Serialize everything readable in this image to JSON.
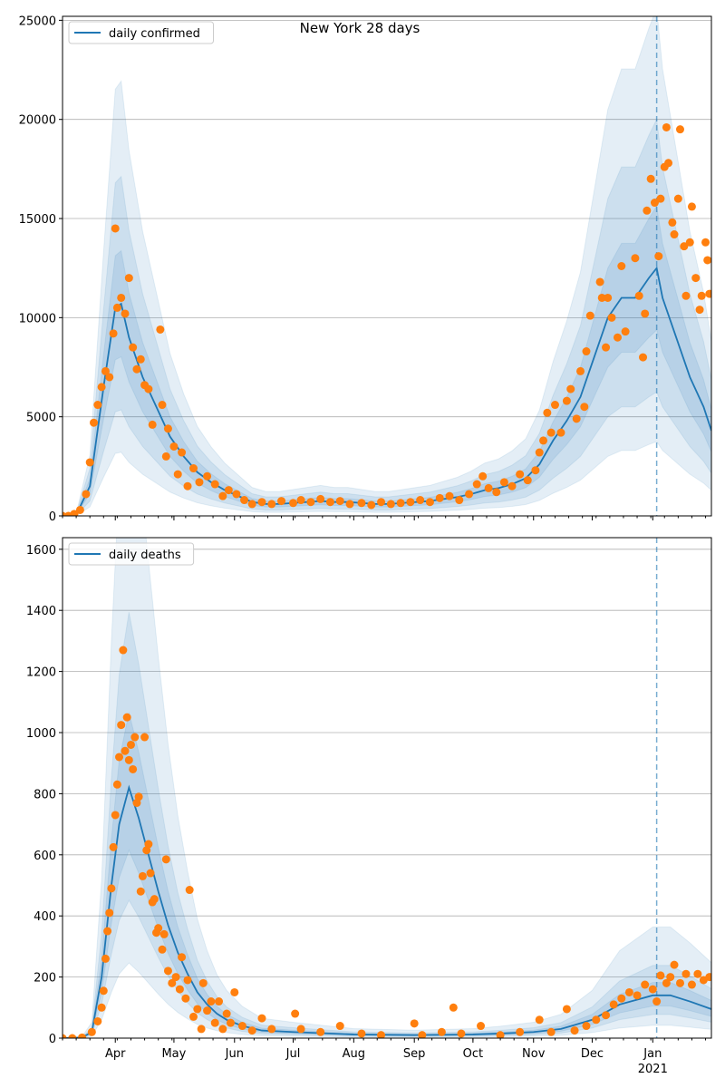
{
  "chart_data": [
    {
      "type": "line",
      "title": "New York 28 days",
      "legend": "daily confirmed",
      "legend_position": "top-left",
      "xlim": [
        "2020-03-05",
        "2021-01-31"
      ],
      "ylim": [
        0,
        25200
      ],
      "yticks": [
        0,
        5000,
        10000,
        15000,
        20000,
        25000
      ],
      "grid": "y",
      "forecast_marker": "2021-01-03",
      "colors": {
        "line": "#1f77b4",
        "points": "#ff7f0e",
        "band": "#1f77b4"
      },
      "band_factors": [
        {
          "lo": 0.3,
          "hi": 2.05
        },
        {
          "lo": 0.5,
          "hi": 1.6
        },
        {
          "lo": 0.75,
          "hi": 1.25
        }
      ],
      "model": [
        [
          "2020-03-05",
          0
        ],
        [
          "2020-03-12",
          50
        ],
        [
          "2020-03-19",
          1500
        ],
        [
          "2020-03-26",
          6500
        ],
        [
          "2020-04-01",
          10500
        ],
        [
          "2020-04-04",
          10700
        ],
        [
          "2020-04-08",
          9000
        ],
        [
          "2020-04-15",
          7000
        ],
        [
          "2020-04-22",
          5500
        ],
        [
          "2020-04-29",
          4000
        ],
        [
          "2020-05-06",
          3000
        ],
        [
          "2020-05-13",
          2200
        ],
        [
          "2020-05-20",
          1700
        ],
        [
          "2020-05-27",
          1300
        ],
        [
          "2020-06-03",
          1000
        ],
        [
          "2020-06-10",
          700
        ],
        [
          "2020-06-17",
          600
        ],
        [
          "2020-06-24",
          600
        ],
        [
          "2020-07-01",
          650
        ],
        [
          "2020-07-08",
          700
        ],
        [
          "2020-07-15",
          750
        ],
        [
          "2020-07-22",
          700
        ],
        [
          "2020-07-29",
          700
        ],
        [
          "2020-08-05",
          650
        ],
        [
          "2020-08-12",
          600
        ],
        [
          "2020-08-19",
          600
        ],
        [
          "2020-08-26",
          650
        ],
        [
          "2020-09-02",
          700
        ],
        [
          "2020-09-09",
          750
        ],
        [
          "2020-09-16",
          850
        ],
        [
          "2020-09-23",
          950
        ],
        [
          "2020-09-30",
          1100
        ],
        [
          "2020-10-07",
          1300
        ],
        [
          "2020-10-14",
          1400
        ],
        [
          "2020-10-21",
          1600
        ],
        [
          "2020-10-28",
          1900
        ],
        [
          "2020-11-04",
          2600
        ],
        [
          "2020-11-11",
          3800
        ],
        [
          "2020-11-18",
          4800
        ],
        [
          "2020-11-25",
          6000
        ],
        [
          "2020-12-02",
          8000
        ],
        [
          "2020-12-09",
          10000
        ],
        [
          "2020-12-16",
          11000
        ],
        [
          "2020-12-23",
          11000
        ],
        [
          "2020-12-30",
          12000
        ],
        [
          "2021-01-03",
          12500
        ],
        [
          "2021-01-06",
          11000
        ],
        [
          "2021-01-13",
          9000
        ],
        [
          "2021-01-20",
          7000
        ],
        [
          "2021-01-27",
          5500
        ],
        [
          "2021-01-31",
          4300
        ]
      ],
      "observed": [
        [
          "2020-03-05",
          0
        ],
        [
          "2020-03-08",
          0
        ],
        [
          "2020-03-11",
          100
        ],
        [
          "2020-03-14",
          300
        ],
        [
          "2020-03-17",
          1100
        ],
        [
          "2020-03-19",
          2700
        ],
        [
          "2020-03-21",
          4700
        ],
        [
          "2020-03-23",
          5600
        ],
        [
          "2020-03-25",
          6500
        ],
        [
          "2020-03-27",
          7300
        ],
        [
          "2020-03-29",
          7000
        ],
        [
          "2020-03-31",
          9200
        ],
        [
          "2020-04-01",
          14500
        ],
        [
          "2020-04-02",
          10500
        ],
        [
          "2020-04-04",
          11000
        ],
        [
          "2020-04-06",
          10200
        ],
        [
          "2020-04-08",
          12000
        ],
        [
          "2020-04-10",
          8500
        ],
        [
          "2020-04-12",
          7400
        ],
        [
          "2020-04-14",
          7900
        ],
        [
          "2020-04-16",
          6600
        ],
        [
          "2020-04-18",
          6400
        ],
        [
          "2020-04-20",
          4600
        ],
        [
          "2020-04-24",
          9400
        ],
        [
          "2020-04-25",
          5600
        ],
        [
          "2020-04-27",
          3000
        ],
        [
          "2020-04-28",
          4400
        ],
        [
          "2020-05-01",
          3500
        ],
        [
          "2020-05-03",
          2100
        ],
        [
          "2020-05-05",
          3200
        ],
        [
          "2020-05-08",
          1500
        ],
        [
          "2020-05-11",
          2400
        ],
        [
          "2020-05-14",
          1700
        ],
        [
          "2020-05-18",
          2000
        ],
        [
          "2020-05-22",
          1600
        ],
        [
          "2020-05-26",
          1000
        ],
        [
          "2020-05-29",
          1300
        ],
        [
          "2020-06-02",
          1100
        ],
        [
          "2020-06-06",
          800
        ],
        [
          "2020-06-10",
          600
        ],
        [
          "2020-06-15",
          700
        ],
        [
          "2020-06-20",
          600
        ],
        [
          "2020-06-25",
          750
        ],
        [
          "2020-07-01",
          650
        ],
        [
          "2020-07-05",
          800
        ],
        [
          "2020-07-10",
          700
        ],
        [
          "2020-07-15",
          850
        ],
        [
          "2020-07-20",
          700
        ],
        [
          "2020-07-25",
          750
        ],
        [
          "2020-07-30",
          600
        ],
        [
          "2020-08-05",
          650
        ],
        [
          "2020-08-10",
          550
        ],
        [
          "2020-08-15",
          700
        ],
        [
          "2020-08-20",
          600
        ],
        [
          "2020-08-25",
          650
        ],
        [
          "2020-08-30",
          700
        ],
        [
          "2020-09-04",
          800
        ],
        [
          "2020-09-09",
          700
        ],
        [
          "2020-09-14",
          900
        ],
        [
          "2020-09-19",
          1000
        ],
        [
          "2020-09-24",
          800
        ],
        [
          "2020-09-29",
          1100
        ],
        [
          "2020-10-03",
          1600
        ],
        [
          "2020-10-06",
          2000
        ],
        [
          "2020-10-09",
          1400
        ],
        [
          "2020-10-13",
          1200
        ],
        [
          "2020-10-17",
          1700
        ],
        [
          "2020-10-21",
          1500
        ],
        [
          "2020-10-25",
          2100
        ],
        [
          "2020-10-29",
          1800
        ],
        [
          "2020-11-02",
          2300
        ],
        [
          "2020-11-04",
          3200
        ],
        [
          "2020-11-06",
          3800
        ],
        [
          "2020-11-08",
          5200
        ],
        [
          "2020-11-10",
          4200
        ],
        [
          "2020-11-12",
          5600
        ],
        [
          "2020-11-15",
          4200
        ],
        [
          "2020-11-18",
          5800
        ],
        [
          "2020-11-20",
          6400
        ],
        [
          "2020-11-23",
          4900
        ],
        [
          "2020-11-25",
          7300
        ],
        [
          "2020-11-27",
          5500
        ],
        [
          "2020-11-28",
          8300
        ],
        [
          "2020-11-30",
          10100
        ],
        [
          "2020-12-05",
          11800
        ],
        [
          "2020-12-06",
          11000
        ],
        [
          "2020-12-08",
          8500
        ],
        [
          "2020-12-09",
          11000
        ],
        [
          "2020-12-11",
          10000
        ],
        [
          "2020-12-14",
          9000
        ],
        [
          "2020-12-16",
          12600
        ],
        [
          "2020-12-18",
          9300
        ],
        [
          "2020-12-23",
          13000
        ],
        [
          "2020-12-25",
          11100
        ],
        [
          "2020-12-27",
          8000
        ],
        [
          "2020-12-28",
          10200
        ],
        [
          "2020-12-29",
          15400
        ],
        [
          "2020-12-31",
          17000
        ],
        [
          "2021-01-02",
          15800
        ],
        [
          "2021-01-04",
          13100
        ],
        [
          "2021-01-05",
          16000
        ],
        [
          "2021-01-07",
          17600
        ],
        [
          "2021-01-08",
          19600
        ],
        [
          "2021-01-09",
          17800
        ],
        [
          "2021-01-11",
          14800
        ],
        [
          "2021-01-12",
          14200
        ],
        [
          "2021-01-14",
          16000
        ],
        [
          "2021-01-15",
          19500
        ],
        [
          "2021-01-17",
          13600
        ],
        [
          "2021-01-18",
          11100
        ],
        [
          "2021-01-20",
          13800
        ],
        [
          "2021-01-21",
          15600
        ],
        [
          "2021-01-23",
          12000
        ],
        [
          "2021-01-25",
          10400
        ],
        [
          "2021-01-26",
          11100
        ],
        [
          "2021-01-28",
          13800
        ],
        [
          "2021-01-29",
          12900
        ],
        [
          "2021-01-30",
          11200
        ]
      ]
    },
    {
      "type": "line",
      "legend": "daily deaths",
      "legend_position": "top-left",
      "xlim": [
        "2020-03-05",
        "2021-01-31"
      ],
      "ylim": [
        0,
        1638
      ],
      "yticks": [
        0,
        200,
        400,
        600,
        800,
        1000,
        1200,
        1400,
        1600
      ],
      "grid": "y",
      "forecast_marker": "2021-01-03",
      "xticks": [
        "Apr",
        "May",
        "Jun",
        "Jul",
        "Aug",
        "Sep",
        "Oct",
        "Nov",
        "Dec",
        "Jan"
      ],
      "xtick_dates": [
        "2020-04-01",
        "2020-05-01",
        "2020-06-01",
        "2020-07-01",
        "2020-08-01",
        "2020-09-01",
        "2020-10-01",
        "2020-11-01",
        "2020-12-01",
        "2021-01-01"
      ],
      "year_label": "2021",
      "colors": {
        "line": "#1f77b4",
        "points": "#ff7f0e",
        "band": "#1f77b4"
      },
      "band_factors": [
        {
          "lo": 0.3,
          "hi": 2.6
        },
        {
          "lo": 0.55,
          "hi": 1.7
        },
        {
          "lo": 0.75,
          "hi": 1.3
        }
      ],
      "model": [
        [
          "2020-03-05",
          0
        ],
        [
          "2020-03-15",
          2
        ],
        [
          "2020-03-20",
          20
        ],
        [
          "2020-03-25",
          200
        ],
        [
          "2020-03-30",
          500
        ],
        [
          "2020-04-03",
          700
        ],
        [
          "2020-04-08",
          820
        ],
        [
          "2020-04-13",
          720
        ],
        [
          "2020-04-18",
          600
        ],
        [
          "2020-04-23",
          480
        ],
        [
          "2020-04-28",
          370
        ],
        [
          "2020-05-03",
          280
        ],
        [
          "2020-05-08",
          210
        ],
        [
          "2020-05-13",
          150
        ],
        [
          "2020-05-18",
          110
        ],
        [
          "2020-05-23",
          80
        ],
        [
          "2020-05-28",
          60
        ],
        [
          "2020-06-05",
          40
        ],
        [
          "2020-06-15",
          25
        ],
        [
          "2020-07-01",
          20
        ],
        [
          "2020-08-01",
          12
        ],
        [
          "2020-09-01",
          10
        ],
        [
          "2020-10-01",
          12
        ],
        [
          "2020-10-15",
          15
        ],
        [
          "2020-11-01",
          20
        ],
        [
          "2020-11-15",
          30
        ],
        [
          "2020-12-01",
          60
        ],
        [
          "2020-12-15",
          110
        ],
        [
          "2021-01-01",
          140
        ],
        [
          "2021-01-10",
          140
        ],
        [
          "2021-01-20",
          120
        ],
        [
          "2021-01-31",
          95
        ]
      ],
      "observed": [
        [
          "2020-03-05",
          0
        ],
        [
          "2020-03-10",
          0
        ],
        [
          "2020-03-15",
          2
        ],
        [
          "2020-03-20",
          20
        ],
        [
          "2020-03-23",
          55
        ],
        [
          "2020-03-25",
          100
        ],
        [
          "2020-03-26",
          155
        ],
        [
          "2020-03-27",
          260
        ],
        [
          "2020-03-28",
          350
        ],
        [
          "2020-03-29",
          410
        ],
        [
          "2020-03-30",
          490
        ],
        [
          "2020-03-31",
          625
        ],
        [
          "2020-04-01",
          730
        ],
        [
          "2020-04-02",
          830
        ],
        [
          "2020-04-03",
          920
        ],
        [
          "2020-04-04",
          1025
        ],
        [
          "2020-04-05",
          1270
        ],
        [
          "2020-04-06",
          940
        ],
        [
          "2020-04-07",
          1050
        ],
        [
          "2020-04-08",
          910
        ],
        [
          "2020-04-09",
          960
        ],
        [
          "2020-04-10",
          880
        ],
        [
          "2020-04-11",
          985
        ],
        [
          "2020-04-12",
          770
        ],
        [
          "2020-04-13",
          790
        ],
        [
          "2020-04-14",
          480
        ],
        [
          "2020-04-15",
          530
        ],
        [
          "2020-04-16",
          985
        ],
        [
          "2020-04-17",
          615
        ],
        [
          "2020-04-18",
          635
        ],
        [
          "2020-04-19",
          540
        ],
        [
          "2020-04-20",
          445
        ],
        [
          "2020-04-21",
          455
        ],
        [
          "2020-04-22",
          345
        ],
        [
          "2020-04-23",
          360
        ],
        [
          "2020-04-25",
          290
        ],
        [
          "2020-04-26",
          340
        ],
        [
          "2020-04-27",
          585
        ],
        [
          "2020-04-28",
          220
        ],
        [
          "2020-04-30",
          180
        ],
        [
          "2020-05-02",
          200
        ],
        [
          "2020-05-04",
          160
        ],
        [
          "2020-05-05",
          265
        ],
        [
          "2020-05-07",
          130
        ],
        [
          "2020-05-08",
          190
        ],
        [
          "2020-05-09",
          485
        ],
        [
          "2020-05-11",
          70
        ],
        [
          "2020-05-13",
          95
        ],
        [
          "2020-05-15",
          30
        ],
        [
          "2020-05-16",
          180
        ],
        [
          "2020-05-18",
          90
        ],
        [
          "2020-05-20",
          120
        ],
        [
          "2020-05-22",
          50
        ],
        [
          "2020-05-24",
          120
        ],
        [
          "2020-05-26",
          30
        ],
        [
          "2020-05-28",
          80
        ],
        [
          "2020-05-30",
          50
        ],
        [
          "2020-06-01",
          150
        ],
        [
          "2020-06-05",
          40
        ],
        [
          "2020-06-10",
          25
        ],
        [
          "2020-06-15",
          65
        ],
        [
          "2020-06-20",
          30
        ],
        [
          "2020-07-02",
          80
        ],
        [
          "2020-07-05",
          30
        ],
        [
          "2020-07-15",
          20
        ],
        [
          "2020-07-25",
          40
        ],
        [
          "2020-08-05",
          15
        ],
        [
          "2020-08-15",
          10
        ],
        [
          "2020-09-01",
          48
        ],
        [
          "2020-09-05",
          10
        ],
        [
          "2020-09-15",
          20
        ],
        [
          "2020-09-21",
          100
        ],
        [
          "2020-09-25",
          15
        ],
        [
          "2020-10-05",
          40
        ],
        [
          "2020-10-15",
          10
        ],
        [
          "2020-10-25",
          20
        ],
        [
          "2020-11-04",
          60
        ],
        [
          "2020-11-10",
          20
        ],
        [
          "2020-11-18",
          95
        ],
        [
          "2020-11-22",
          25
        ],
        [
          "2020-11-28",
          40
        ],
        [
          "2020-12-03",
          60
        ],
        [
          "2020-12-08",
          75
        ],
        [
          "2020-12-12",
          110
        ],
        [
          "2020-12-16",
          130
        ],
        [
          "2020-12-20",
          150
        ],
        [
          "2020-12-24",
          140
        ],
        [
          "2020-12-28",
          175
        ],
        [
          "2021-01-01",
          160
        ],
        [
          "2021-01-03",
          120
        ],
        [
          "2021-01-05",
          205
        ],
        [
          "2021-01-08",
          180
        ],
        [
          "2021-01-10",
          200
        ],
        [
          "2021-01-12",
          240
        ],
        [
          "2021-01-15",
          180
        ],
        [
          "2021-01-18",
          210
        ],
        [
          "2021-01-21",
          175
        ],
        [
          "2021-01-24",
          210
        ],
        [
          "2021-01-27",
          190
        ],
        [
          "2021-01-30",
          200
        ]
      ]
    }
  ]
}
